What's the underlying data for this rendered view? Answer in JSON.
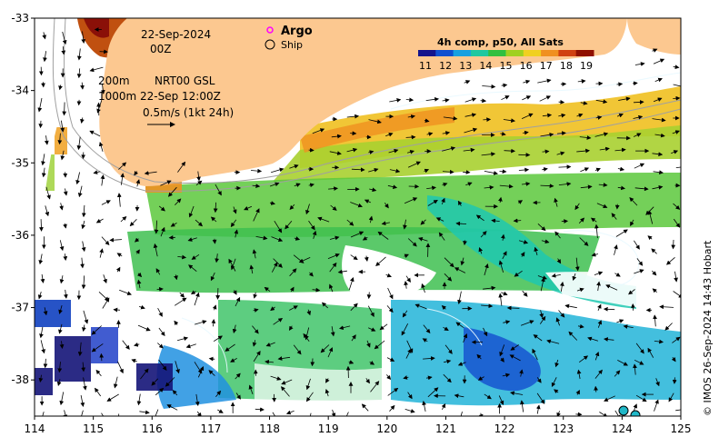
{
  "map": {
    "extent": {
      "lon_min": 114,
      "lon_max": 125,
      "lat_min": -38.5,
      "lat_max": -33
    },
    "x_ticks": [
      "114",
      "115",
      "116",
      "117",
      "118",
      "119",
      "120",
      "121",
      "122",
      "123",
      "124",
      "125"
    ],
    "y_ticks": [
      "-33",
      "-34",
      "-35",
      "-36",
      "-37",
      "-38"
    ],
    "land_color": "#fcc890",
    "grid": false
  },
  "annotations": {
    "date": "22-Sep-2024",
    "time": "00Z",
    "contour_200": "200m",
    "contour_1000": "1000m",
    "product": "NRT00 GSL",
    "product_time": "22-Sep 12:00Z",
    "scale_arrow": "0.5m/s (1kt 24h)"
  },
  "legend": {
    "argo_label": "Argo",
    "ship_label": "Ship",
    "argo_color": "#ff00ff"
  },
  "colorbar": {
    "title": "4h comp, p50, All Sats",
    "ticks": [
      "11",
      "12",
      "13",
      "14",
      "15",
      "16",
      "17",
      "18",
      "19"
    ],
    "colors": [
      "#14148c",
      "#1050d0",
      "#18a0e0",
      "#1ec8a0",
      "#30c040",
      "#a0d020",
      "#f0d020",
      "#f09020",
      "#d04010",
      "#901000"
    ]
  },
  "credit": "© IMOS 26-Sep-2024 14:43 Hobart"
}
